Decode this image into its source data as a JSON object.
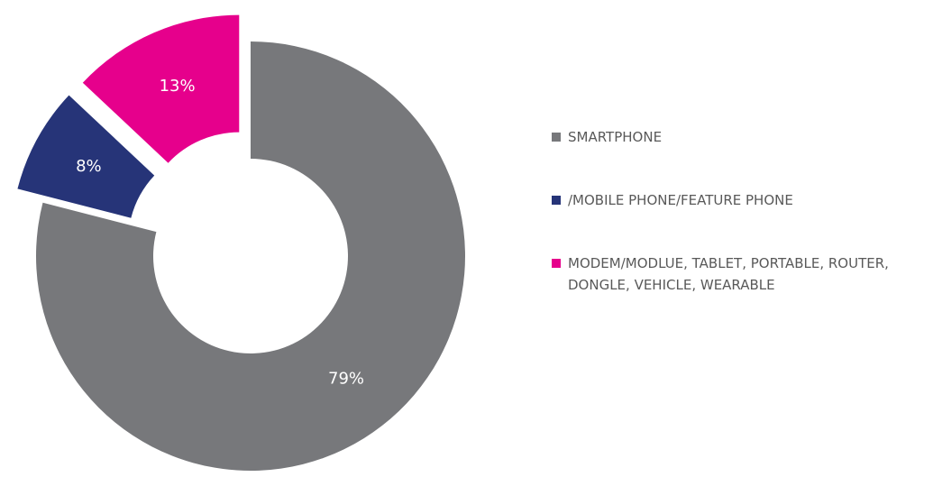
{
  "chart_data": {
    "type": "donut",
    "categories": [
      "SMARTPHONE",
      "/MOBILE PHONE/FEATURE PHONE",
      "MODEM/MODLUE, TABLET, PORTABLE, ROUTER, DONGLE, VEHICLE, WEARABLE"
    ],
    "values": [
      79,
      8,
      13
    ],
    "value_labels": [
      "79%",
      "8%",
      "13%"
    ],
    "colors": [
      "#77787b",
      "#263478",
      "#e6008c"
    ],
    "legend": "right"
  }
}
